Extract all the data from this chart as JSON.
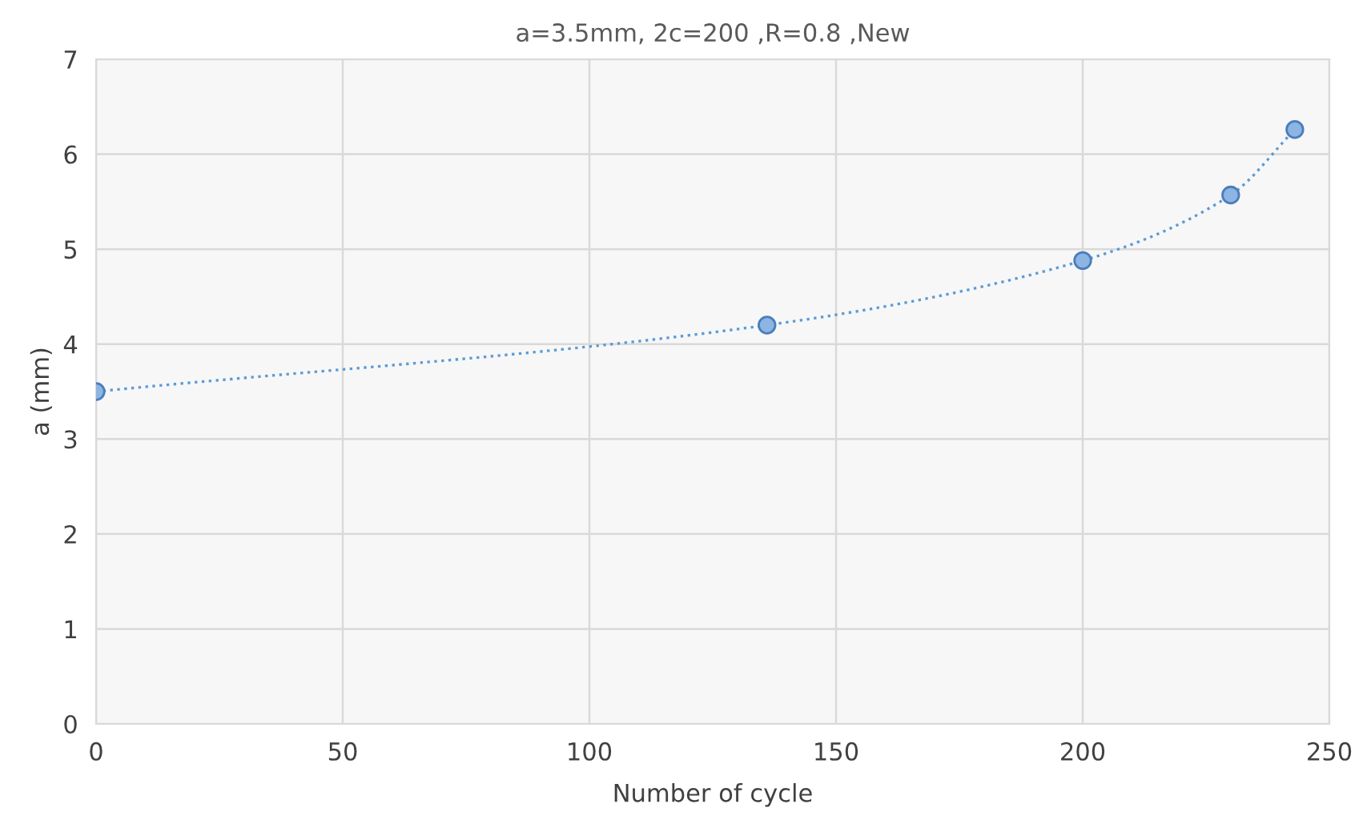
{
  "chart_data": {
    "type": "line",
    "title": "a=3.5mm, 2c=200 ,R=0.8 ,New",
    "xlabel": "Number of cycle",
    "ylabel": "a (mm)",
    "x": [
      0,
      136,
      200,
      230,
      243
    ],
    "series": [
      {
        "color": "#5b9bd5",
        "values": [
          3.5,
          4.2,
          4.88,
          5.57,
          6.26
        ]
      }
    ],
    "xlim": [
      0,
      250
    ],
    "xticks": [
      0,
      50,
      100,
      150,
      200,
      250
    ],
    "ylim": [
      0,
      7
    ],
    "yticks": [
      0,
      1,
      2,
      3,
      4,
      5,
      6,
      7
    ],
    "grid": true,
    "marker": "circle",
    "line_style": "dotted",
    "legend": false
  }
}
